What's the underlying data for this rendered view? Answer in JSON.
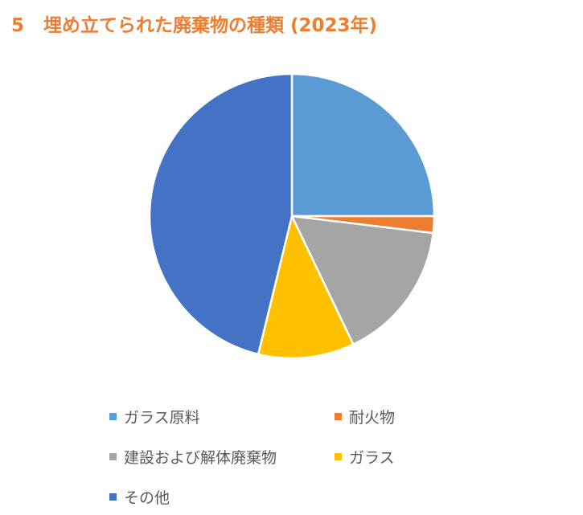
{
  "title": {
    "number": "5",
    "text": "埋め立てられた廃棄物の種類 (2023年)"
  },
  "chart_data": {
    "type": "pie",
    "title": "5　埋め立てられた廃棄物の種類 (2023年)",
    "categories": [
      "ガラス原料",
      "耐火物",
      "建設および解体廃棄物",
      "ガラス",
      "その他"
    ],
    "values": [
      25.0,
      1.9,
      16.0,
      10.9,
      46.2
    ],
    "unit": "percent (estimated from slice angles)",
    "colors": [
      "#5B9BD5",
      "#ED7D31",
      "#A5A5A5",
      "#FFC000",
      "#4472C4"
    ],
    "start_angle_deg": 0,
    "direction": "clockwise",
    "legend_position": "bottom",
    "data_labels": false
  },
  "legend": {
    "items": [
      {
        "label": "ガラス原料",
        "color": "#5B9BD5"
      },
      {
        "label": "耐火物",
        "color": "#ED7D31"
      },
      {
        "label": "建設および解体廃棄物",
        "color": "#A5A5A5"
      },
      {
        "label": "ガラス",
        "color": "#FFC000"
      },
      {
        "label": "その他",
        "color": "#4472C4"
      }
    ]
  }
}
